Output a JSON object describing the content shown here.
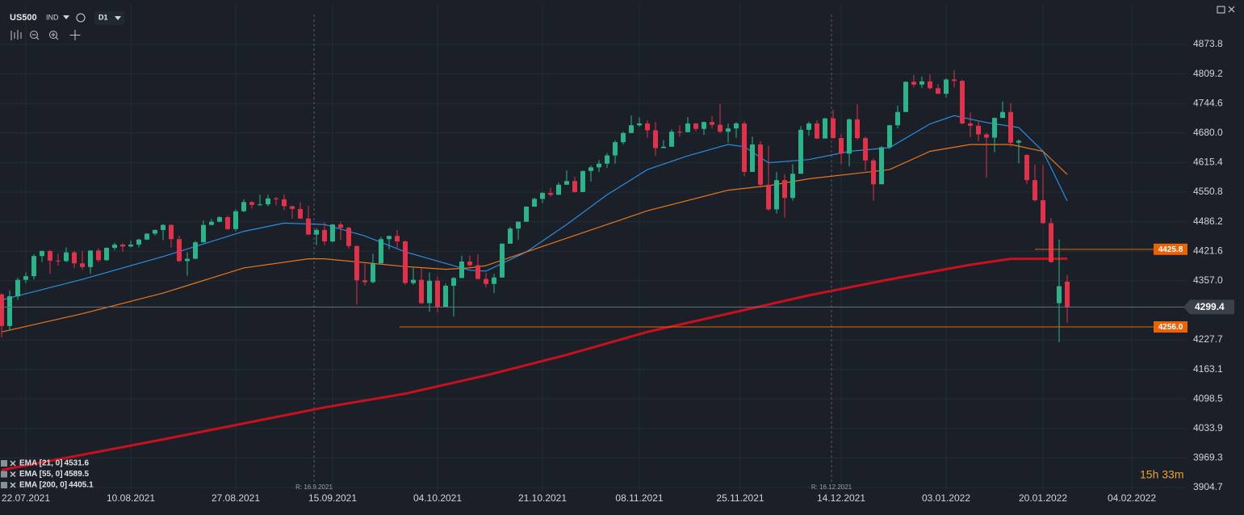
{
  "header": {
    "symbol": "US500",
    "market": "IND",
    "interval": "D1"
  },
  "chart_data": {
    "type": "candlestick",
    "up_color": "#2bb38a",
    "down_color": "#e0324b",
    "grid": true,
    "xlim": [
      -0.2,
      146.8
    ],
    "xticks": [
      {
        "value": 3,
        "label": "22.07.2021"
      },
      {
        "value": 16,
        "label": "10.08.2021"
      },
      {
        "value": 29,
        "label": "27.08.2021"
      },
      {
        "value": 41,
        "label": "15.09.2021"
      },
      {
        "value": 54,
        "label": "04.10.2021"
      },
      {
        "value": 67,
        "label": "21.10.2021"
      },
      {
        "value": 79,
        "label": "08.11.2021"
      },
      {
        "value": 91.5,
        "label": "25.11.2021"
      },
      {
        "value": 104,
        "label": "14.12.2021"
      },
      {
        "value": 117,
        "label": "03.01.2022"
      },
      {
        "value": 129,
        "label": "20.01.2022"
      },
      {
        "value": 140,
        "label": "04.02.2022"
      }
    ],
    "ylim": [
      3876.5,
      4962.1
    ],
    "yticks": [
      4873.8,
      4809.2,
      4744.6,
      {
        "value": 4680,
        "label": "4680.0"
      },
      4615.4,
      4550.8,
      4486.2,
      4421.6,
      {
        "value": 4357,
        "label": "4357.0"
      },
      4227.7,
      4163.1,
      4098.5,
      4033.9,
      3969.3,
      3904.7
    ],
    "open": [
      4327,
      4258,
      4323,
      4359,
      4367,
      4411,
      4422,
      4401,
      4400,
      4419,
      4395,
      4387,
      4423,
      4402,
      4429,
      4436,
      4432,
      4436,
      4447,
      4460,
      4468,
      4479,
      4448,
      4400,
      4405,
      4441,
      4479,
      4486,
      4496,
      4470,
      4509,
      4529,
      4523,
      4524,
      4537,
      4535,
      4520,
      4514,
      4493,
      4458,
      4468,
      4443,
      4480,
      4473,
      4433,
      4358,
      4354,
      4395,
      4448,
      4455,
      4443,
      4352,
      4359,
      4308,
      4357,
      4300,
      4346,
      4363,
      4399,
      4391,
      4361,
      4350,
      4364,
      4438,
      4471,
      4486,
      4519,
      4536,
      4549,
      4545,
      4567,
      4575,
      4551,
      4597,
      4605,
      4613,
      4631,
      4660,
      4680,
      4697,
      4701,
      4686,
      4647,
      4650,
      4683,
      4682,
      4701,
      4689,
      4704,
      4698,
      4683,
      4690,
      4701,
      4595,
      4655,
      4567,
      4513,
      4577,
      4538,
      4591,
      4687,
      4701,
      4668,
      4712,
      4669,
      4635,
      4710,
      4669,
      4620,
      4568,
      4649,
      4697,
      4726,
      4792,
      4786,
      4793,
      4778,
      4766,
      4797,
      4794,
      4701,
      4696,
      4677,
      4670,
      4713,
      4726,
      4659,
      4632,
      4577,
      4533,
      4483,
      4308,
      4355
    ],
    "high": [
      4330,
      4336,
      4364,
      4375,
      4415,
      4423,
      4425,
      4416,
      4430,
      4422,
      4422,
      4424,
      4428,
      4430,
      4440,
      4439,
      4445,
      4449,
      4461,
      4469,
      4481,
      4480,
      4455,
      4419,
      4444,
      4489,
      4492,
      4498,
      4499,
      4513,
      4535,
      4531,
      4545,
      4545,
      4540,
      4546,
      4521,
      4529,
      4521,
      4472,
      4485,
      4481,
      4486,
      4475,
      4434,
      4394,
      4416,
      4453,
      4456,
      4468,
      4445,
      4385,
      4384,
      4375,
      4366,
      4351,
      4365,
      4412,
      4412,
      4415,
      4374,
      4372,
      4439,
      4475,
      4487,
      4520,
      4539,
      4551,
      4560,
      4572,
      4598,
      4584,
      4598,
      4609,
      4621,
      4636,
      4664,
      4683,
      4718,
      4714,
      4708,
      4704,
      4664,
      4688,
      4697,
      4715,
      4702,
      4705,
      4717,
      4744,
      4701,
      4704,
      4706,
      4672,
      4662,
      4652,
      4595,
      4590,
      4612,
      4695,
      4705,
      4708,
      4713,
      4731,
      4677,
      4712,
      4743,
      4672,
      4624,
      4651,
      4698,
      4740,
      4793,
      4807,
      4804,
      4808,
      4787,
      4800,
      4818,
      4797,
      4725,
      4707,
      4680,
      4714,
      4749,
      4745,
      4666,
      4634,
      4611,
      4610,
      4494,
      4447,
      4370
    ],
    "low": [
      4233,
      4250,
      4315,
      4352,
      4360,
      4398,
      4372,
      4390,
      4398,
      4385,
      4381,
      4372,
      4398,
      4400,
      4424,
      4420,
      4430,
      4430,
      4446,
      4456,
      4446,
      4430,
      4398,
      4368,
      4404,
      4441,
      4478,
      4485,
      4468,
      4465,
      4507,
      4515,
      4521,
      4520,
      4522,
      4511,
      4493,
      4492,
      4457,
      4435,
      4435,
      4441,
      4446,
      4427,
      4305,
      4347,
      4351,
      4395,
      4426,
      4429,
      4348,
      4348,
      4306,
      4289,
      4288,
      4300,
      4279,
      4363,
      4385,
      4360,
      4342,
      4330,
      4364,
      4438,
      4447,
      4486,
      4519,
      4527,
      4541,
      4545,
      4567,
      4550,
      4551,
      4574,
      4595,
      4604,
      4613,
      4655,
      4680,
      4694,
      4670,
      4630,
      4647,
      4650,
      4672,
      4682,
      4684,
      4676,
      4690,
      4680,
      4659,
      4670,
      4585,
      4595,
      4560,
      4510,
      4504,
      4495,
      4532,
      4591,
      4674,
      4667,
      4670,
      4668,
      4612,
      4607,
      4665,
      4598,
      4532,
      4568,
      4645,
      4690,
      4726,
      4780,
      4778,
      4775,
      4765,
      4758,
      4780,
      4699,
      4671,
      4662,
      4583,
      4638,
      4713,
      4650,
      4614,
      4568,
      4530,
      4482,
      4396,
      4222,
      4265
    ],
    "close": [
      4258,
      4323,
      4359,
      4367,
      4411,
      4422,
      4401,
      4400,
      4419,
      4395,
      4387,
      4423,
      4402,
      4429,
      4436,
      4432,
      4436,
      4447,
      4460,
      4468,
      4479,
      4448,
      4400,
      4405,
      4441,
      4479,
      4486,
      4496,
      4470,
      4509,
      4529,
      4523,
      4524,
      4537,
      4535,
      4520,
      4514,
      4493,
      4458,
      4468,
      4443,
      4480,
      4473,
      4433,
      4358,
      4354,
      4395,
      4448,
      4455,
      4443,
      4352,
      4359,
      4308,
      4357,
      4300,
      4346,
      4363,
      4399,
      4391,
      4361,
      4350,
      4364,
      4438,
      4471,
      4486,
      4519,
      4536,
      4549,
      4545,
      4567,
      4575,
      4551,
      4597,
      4605,
      4613,
      4631,
      4660,
      4680,
      4697,
      4701,
      4686,
      4647,
      4650,
      4683,
      4682,
      4701,
      4689,
      4704,
      4698,
      4683,
      4690,
      4701,
      4595,
      4655,
      4567,
      4513,
      4577,
      4538,
      4591,
      4687,
      4701,
      4668,
      4712,
      4669,
      4635,
      4710,
      4669,
      4620,
      4568,
      4649,
      4697,
      4726,
      4792,
      4786,
      4793,
      4778,
      4766,
      4797,
      4794,
      4701,
      4696,
      4677,
      4670,
      4713,
      4726,
      4659,
      4663,
      4577,
      4533,
      4483,
      4398,
      4345,
      4299.4
    ],
    "lines": [
      {
        "name": "EMA [21, 0]",
        "color": "#2b8ce0",
        "width": 1.2,
        "x": [
          0,
          10,
          20,
          30,
          35,
          40,
          45,
          50,
          55,
          58,
          60,
          65,
          70,
          75,
          80,
          85,
          90,
          92,
          95,
          100,
          105,
          110,
          115,
          118,
          122,
          126,
          129,
          132
        ],
        "values": [
          4315,
          4360,
          4410,
          4465,
          4483,
          4480,
          4455,
          4420,
          4395,
          4380,
          4378,
          4420,
          4480,
          4545,
          4600,
          4630,
          4655,
          4650,
          4615,
          4622,
          4640,
          4648,
          4700,
          4718,
          4703,
          4692,
          4640,
          4531.6
        ]
      },
      {
        "name": "EMA [55, 0]",
        "color": "#e8771e",
        "width": 1.2,
        "x": [
          0,
          10,
          20,
          30,
          38,
          40,
          50,
          55,
          58,
          60,
          70,
          80,
          90,
          95,
          100,
          105,
          110,
          115,
          120,
          125,
          129,
          132
        ],
        "values": [
          4245,
          4285,
          4330,
          4385,
          4405,
          4405,
          4388,
          4382,
          4385,
          4390,
          4450,
          4510,
          4555,
          4565,
          4580,
          4590,
          4600,
          4640,
          4655,
          4655,
          4640,
          4589.5
        ]
      },
      {
        "name": "EMA [200, 0]",
        "color": "#c8101e",
        "width": 3,
        "x": [
          0,
          20,
          40,
          50,
          60,
          70,
          80,
          90,
          100,
          110,
          120,
          125,
          132
        ],
        "values": [
          3943,
          4010,
          4080,
          4110,
          4150,
          4195,
          4245,
          4285,
          4325,
          4360,
          4392,
          4405,
          4405.1
        ]
      }
    ],
    "levels": [
      {
        "value": 4425.8,
        "from": 128,
        "color": "#e8630a"
      },
      {
        "value": 4256,
        "label": "4256.0",
        "from": 49.3,
        "color": "#e8630a"
      }
    ],
    "price": 4299.4,
    "annotations": [
      {
        "text": "R: 16.9.2021",
        "x": 38.7
      },
      {
        "text": "R: 16.12.2021",
        "x": 102.8
      }
    ],
    "timer": "15h 33m"
  }
}
